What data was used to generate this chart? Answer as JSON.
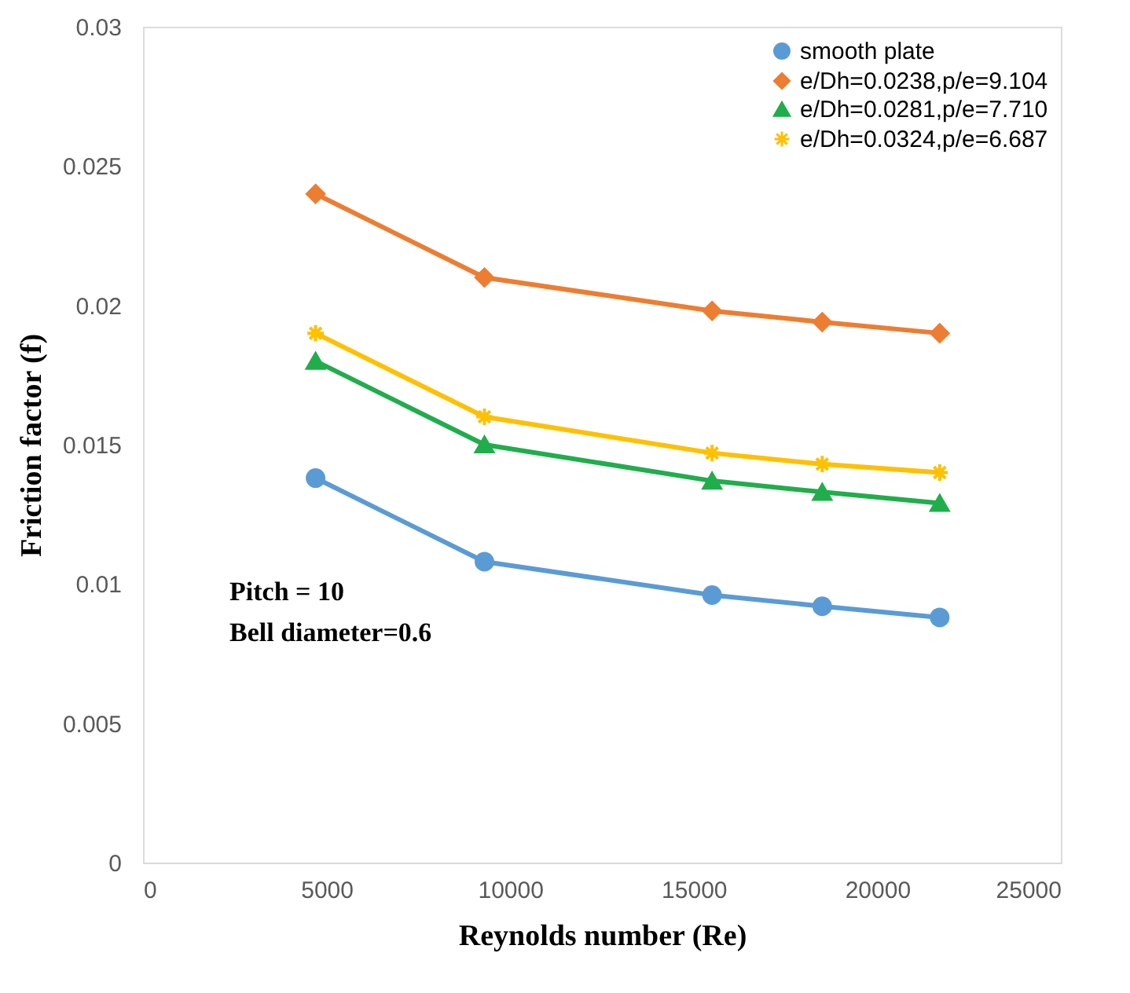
{
  "chart_data": {
    "type": "line",
    "xlabel": "Reynolds number  (Re)",
    "ylabel": "Friction factor (f)",
    "xlim": [
      0,
      25000
    ],
    "xticks": [
      0,
      5000,
      10000,
      15000,
      20000,
      25000
    ],
    "ylim": [
      0,
      0.03
    ],
    "yticks": [
      0,
      0.005,
      0.01,
      0.015,
      0.02,
      0.025,
      0.03
    ],
    "grid": false,
    "legend": "top right",
    "x": [
      4700,
      9300,
      15500,
      18500,
      21700
    ],
    "series": [
      {
        "name": "smooth plate",
        "color": "#5b9bd5",
        "marker": "circle",
        "values": [
          0.0138,
          0.0108,
          0.0096,
          0.0092,
          0.0088
        ]
      },
      {
        "name": "e/Dh=0.0238,p/e=9.104",
        "color": "#ed7d31",
        "marker": "diamond",
        "values": [
          0.024,
          0.021,
          0.0198,
          0.0194,
          0.019
        ]
      },
      {
        "name": "e/Dh=0.0281,p/e=7.710",
        "color": "#1fae4b",
        "marker": "triangle",
        "values": [
          0.018,
          0.015,
          0.0137,
          0.0133,
          0.0129
        ]
      },
      {
        "name": "e/Dh=0.0324,p/e=6.687",
        "color": "#ffc000",
        "marker": "cross",
        "values": [
          0.019,
          0.016,
          0.0147,
          0.0143,
          0.014
        ]
      }
    ],
    "annotations": [
      "Pitch = 10",
      "Bell diameter=0.6"
    ]
  }
}
